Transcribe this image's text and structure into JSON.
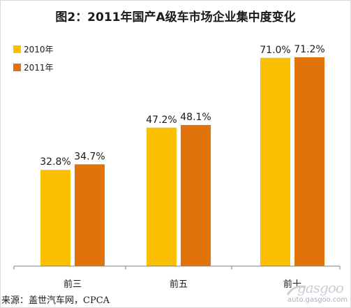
{
  "title": "图2：2011年国产A级车市场企业集中度变化",
  "source": "来源：盖世汽车网，CPCA",
  "watermark": {
    "brand": "gasgoo",
    "site": "auto.gasgoo.com"
  },
  "colors": {
    "series_2010": "#f9bf00",
    "series_2011": "#e2720a",
    "axis": "#808080"
  },
  "chart_data": {
    "type": "bar",
    "title": "图2：2011年国产A级车市场企业集中度变化",
    "categories": [
      "前三",
      "前五",
      "前十"
    ],
    "series": [
      {
        "name": "2010年",
        "values": [
          32.8,
          47.2,
          71.0
        ],
        "labels": [
          "32.8%",
          "47.2%",
          "71.0%"
        ]
      },
      {
        "name": "2011年",
        "values": [
          34.7,
          48.1,
          71.2
        ],
        "labels": [
          "34.7%",
          "48.1%",
          "71.2%"
        ]
      }
    ],
    "xlabel": "",
    "ylabel": "",
    "ylim": [
      0,
      80
    ],
    "grid": false,
    "legend": "top-left",
    "unit": "%"
  }
}
